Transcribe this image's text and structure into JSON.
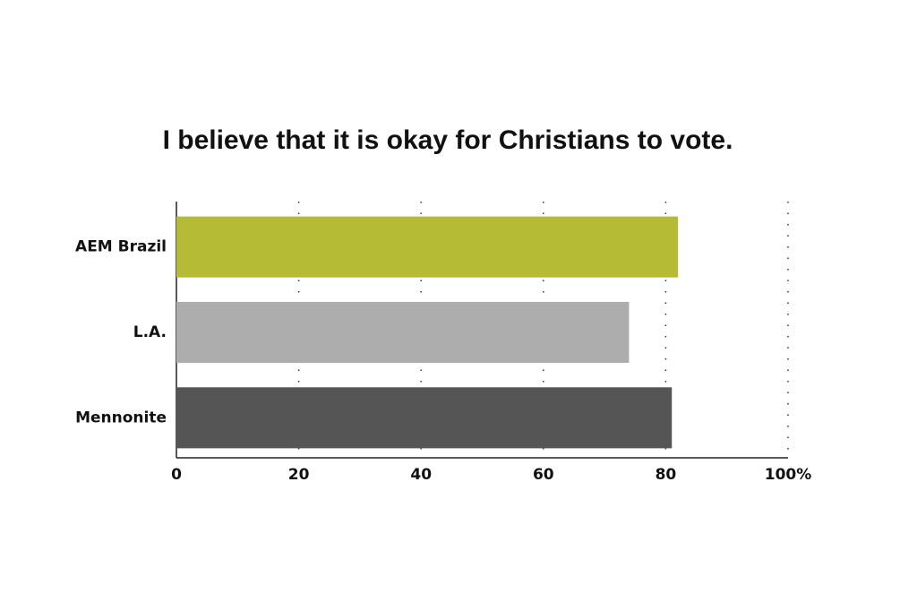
{
  "chart_data": {
    "type": "bar",
    "orientation": "horizontal",
    "title": "I believe that it is okay for Christians to vote.",
    "categories": [
      "AEM Brazil",
      "L.A.",
      "Mennonite"
    ],
    "values": [
      82,
      74,
      81
    ],
    "colors": [
      "#b5bb35",
      "#adadad",
      "#555555"
    ],
    "xlim": [
      0,
      100
    ],
    "xticks": [
      0,
      20,
      40,
      60,
      80,
      {
        "value": 100,
        "label": "100%"
      }
    ],
    "grid": true
  }
}
